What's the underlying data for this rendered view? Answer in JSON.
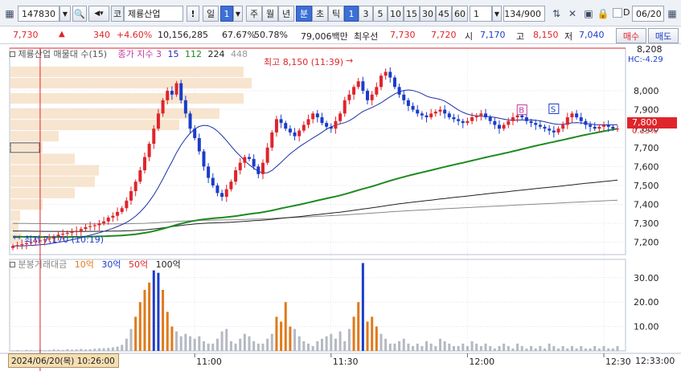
{
  "toolbar": {
    "code": "147830",
    "market": "코",
    "stock_name": "제룡산업",
    "exclaim": "!",
    "period_selected": "일",
    "period_count": "1",
    "period_options": [
      "주",
      "월",
      "년"
    ],
    "interval_active": "분",
    "interval_options": [
      "초",
      "틱"
    ],
    "minute_options": [
      "1",
      "3",
      "5",
      "10",
      "15",
      "30",
      "45",
      "60"
    ],
    "minute_active": "1",
    "multiplier": "1",
    "bar_count": "134/900",
    "date": "06/20"
  },
  "quote": {
    "price": "7,730",
    "change": "340",
    "change_pct": "+4.60%",
    "volume": "10,156,285",
    "ratio1": "67.67%",
    "ratio2": "50.78%",
    "amount": "79,006백만",
    "best_ask_label": "최우선",
    "best_ask": "7,730",
    "best_bid": "7,720",
    "open_label": "시",
    "open": "7,170",
    "high_label": "고",
    "high": "8,150",
    "low_label": "저",
    "low": "7,040",
    "buy_label": "매수",
    "sell_label": "매도"
  },
  "price_chart": {
    "legend_name": "제룡산업 매물대 수(15)",
    "legend_ma": "종가 지수 3",
    "legend_ma_values": [
      "15",
      "112",
      "224",
      "448"
    ],
    "high_annotation": "최고 8,150 (11:39)",
    "low_annotation": "최저 7,170 (10:19)",
    "hc_label": "HC:-4.29",
    "top_value": "8,208",
    "current_price": "7,800",
    "current_pct": "0.13%",
    "marker_buy": "B",
    "marker_sell": "S",
    "colors": {
      "up": "#e0242b",
      "down": "#1b3cc9",
      "ma15": "#1b2fa8",
      "ma112": "#1f8a1f",
      "ma224": "#222222",
      "ma448": "#888888",
      "profile": "#f8e5cf"
    }
  },
  "volume_chart": {
    "legend_name": "분봉거래대금",
    "legend_items": [
      "10억",
      "30억",
      "50억",
      "100억"
    ],
    "legend_colors": [
      "#e07a1a",
      "#1b3cc9",
      "#e0242b",
      "#222222"
    ]
  },
  "time_axis": {
    "cursor_label": "2024/06/20(목) 10:26:00",
    "end_label": "12:33:00"
  },
  "chart_data": {
    "type": "candlestick",
    "price_axis": {
      "ticks": [
        "8,000",
        "7,900",
        "7,800",
        "7,700",
        "7,600",
        "7,500",
        "7,400",
        "7,300",
        "7,200"
      ],
      "tick_values": [
        8000,
        7900,
        7800,
        7700,
        7600,
        7500,
        7400,
        7300,
        7200
      ],
      "ylim": [
        7135,
        8225
      ]
    },
    "volume_axis": {
      "ticks": [
        "30.00",
        "20.00",
        "10.00"
      ],
      "tick_values": [
        30,
        20,
        10
      ],
      "ylim": [
        0,
        37.5
      ]
    },
    "x_ticks": [
      "11:00",
      "11:30",
      "12:00",
      "12:30"
    ],
    "x_tick_index": [
      40,
      70,
      100,
      130
    ],
    "candles_close": [
      7180,
      7185,
      7190,
      7195,
      7200,
      7205,
      7210,
      7215,
      7220,
      7230,
      7240,
      7245,
      7250,
      7255,
      7260,
      7270,
      7280,
      7285,
      7290,
      7300,
      7310,
      7330,
      7340,
      7360,
      7380,
      7420,
      7470,
      7520,
      7580,
      7650,
      7720,
      7800,
      7880,
      7950,
      8000,
      7980,
      8040,
      7950,
      7880,
      7800,
      7750,
      7680,
      7600,
      7540,
      7500,
      7460,
      7440,
      7480,
      7520,
      7580,
      7620,
      7650,
      7640,
      7600,
      7560,
      7620,
      7700,
      7780,
      7850,
      7830,
      7800,
      7780,
      7760,
      7790,
      7820,
      7850,
      7880,
      7860,
      7830,
      7810,
      7800,
      7840,
      7880,
      7950,
      7980,
      8020,
      8050,
      8000,
      7950,
      7980,
      8020,
      8080,
      8100,
      8070,
      8020,
      7980,
      7950,
      7920,
      7900,
      7880,
      7870,
      7860,
      7880,
      7890,
      7900,
      7880,
      7860,
      7850,
      7840,
      7830,
      7840,
      7860,
      7870,
      7880,
      7860,
      7840,
      7820,
      7800,
      7820,
      7840,
      7860,
      7870,
      7860,
      7840,
      7830,
      7820,
      7810,
      7800,
      7790,
      7780,
      7800,
      7820,
      7860,
      7880,
      7860,
      7840,
      7820,
      7810,
      7800,
      7810,
      7820,
      7810,
      7800,
      7800
    ],
    "volume_values": [
      0.2,
      0.3,
      0.2,
      0.4,
      0.3,
      0.2,
      0.5,
      0.3,
      0.4,
      0.6,
      0.5,
      0.4,
      0.7,
      0.5,
      0.6,
      0.8,
      0.6,
      0.7,
      0.9,
      1.0,
      1.1,
      1.2,
      1.5,
      1.8,
      2.5,
      5,
      9,
      14,
      20,
      25,
      28,
      33,
      32,
      25,
      16,
      10,
      8,
      6,
      7,
      6,
      5,
      6,
      4,
      3,
      3,
      5,
      8,
      9,
      4,
      3,
      5,
      7,
      6,
      4,
      3,
      3,
      5,
      7,
      14,
      12,
      20,
      10,
      9,
      6,
      4,
      3,
      2,
      4,
      5,
      6,
      7,
      5,
      8,
      4,
      9,
      14,
      20,
      36,
      12,
      14,
      10,
      7,
      5,
      3,
      3,
      4,
      5,
      3,
      2,
      3,
      2,
      4,
      3,
      2,
      5,
      4,
      3,
      2,
      2,
      3,
      2,
      4,
      3,
      2,
      3,
      2,
      1,
      2,
      3,
      2,
      1,
      3,
      2,
      1,
      2,
      1,
      2,
      1,
      3,
      2,
      1,
      2,
      1,
      2,
      1,
      2,
      1,
      1,
      2,
      1,
      2,
      1,
      1,
      2
    ]
  }
}
